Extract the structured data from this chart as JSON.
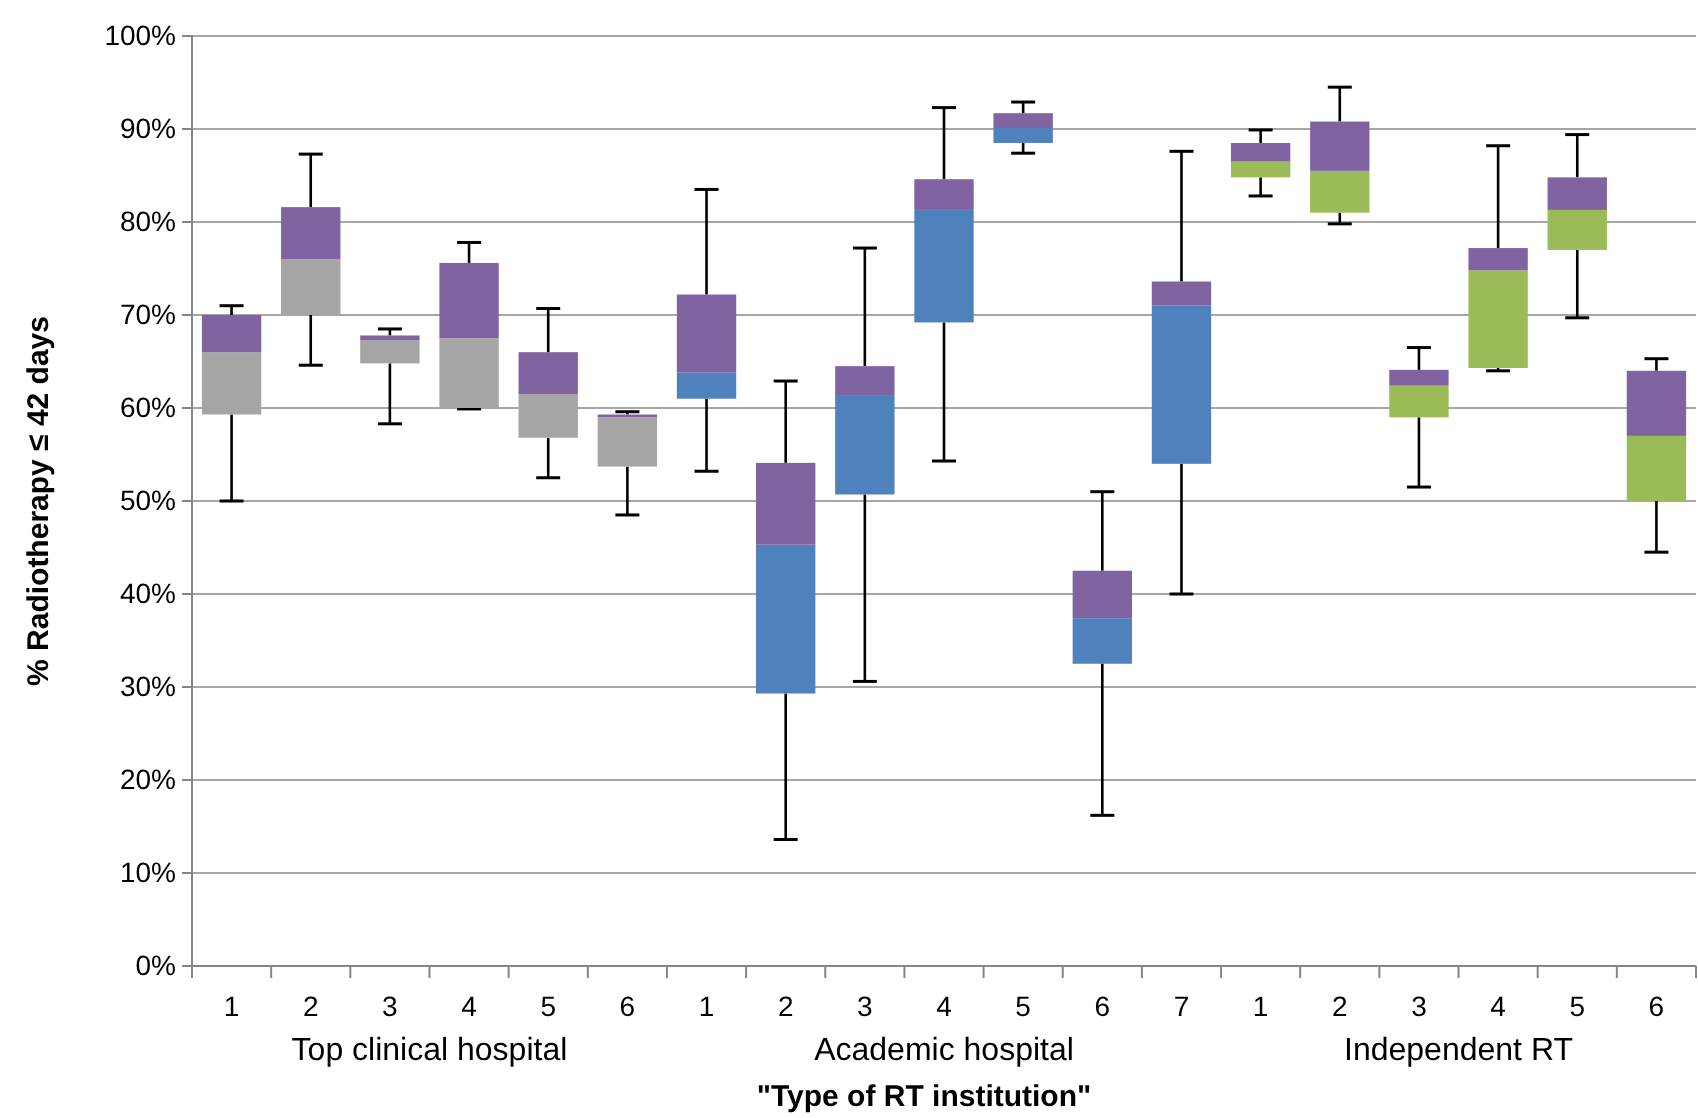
{
  "chart_data": {
    "type": "box",
    "xlabel": "\"Type of RT institution\"",
    "ylabel": "% Radiotherapy ≤ 42 days",
    "categories": [
      "1",
      "2",
      "3",
      "4",
      "5",
      "6",
      "1",
      "2",
      "3",
      "4",
      "5",
      "6",
      "7",
      "1",
      "2",
      "3",
      "4",
      "5",
      "6"
    ],
    "ylim": [
      0,
      100
    ],
    "yticks": [
      {
        "value": 0,
        "label": "0%"
      },
      {
        "value": 10,
        "label": "10%"
      },
      {
        "value": 20,
        "label": "20%"
      },
      {
        "value": 30,
        "label": "30%"
      },
      {
        "value": 40,
        "label": "40%"
      },
      {
        "value": 50,
        "label": "50%"
      },
      {
        "value": 60,
        "label": "60%"
      },
      {
        "value": 70,
        "label": "70%"
      },
      {
        "value": 80,
        "label": "80%"
      },
      {
        "value": 90,
        "label": "90%"
      },
      {
        "value": 100,
        "label": "100%"
      }
    ],
    "grid": "y",
    "color": "#8064a2",
    "annotations": [
      "Top clinical hospital",
      "Academic hospital",
      "Independent RT"
    ],
    "series": [
      {
        "color": "#a5a5a5",
        "boxes": [
          {
            "low": 50,
            "q1": 59.3,
            "median": 66,
            "q3": 70,
            "high": 71
          },
          {
            "low": 64.6,
            "q1": 70,
            "median": 76,
            "q3": 81.6,
            "high": 87.3
          },
          {
            "low": 58.3,
            "q1": 64.8,
            "median": 67.3,
            "q3": 67.8,
            "high": 68.5
          },
          {
            "low": 59.9,
            "q1": 60,
            "median": 67.5,
            "q3": 75.6,
            "high": 77.8
          },
          {
            "low": 52.5,
            "q1": 56.8,
            "median": 61.5,
            "q3": 66,
            "high": 70.7
          },
          {
            "low": 48.5,
            "q1": 53.7,
            "median": 59,
            "q3": 59.3,
            "high": 59.6
          },
          null,
          null,
          null,
          null,
          null,
          null,
          null,
          null,
          null,
          null,
          null,
          null,
          null
        ]
      },
      {
        "color": "#4f81bd",
        "boxes": [
          null,
          null,
          null,
          null,
          null,
          null,
          {
            "low": 53.2,
            "q1": 61,
            "median": 63.8,
            "q3": 72.2,
            "high": 83.5
          },
          {
            "low": 13.6,
            "q1": 29.3,
            "median": 45.3,
            "q3": 54.1,
            "high": 62.9
          },
          {
            "low": 30.6,
            "q1": 50.7,
            "median": 61.3,
            "q3": 64.5,
            "high": 77.2
          },
          {
            "low": 54.3,
            "q1": 69.2,
            "median": 81.3,
            "q3": 84.6,
            "high": 92.3
          },
          {
            "low": 87.4,
            "q1": 88.5,
            "median": 90.1,
            "q3": 91.7,
            "high": 92.9
          },
          {
            "low": 16.2,
            "q1": 32.5,
            "median": 37.4,
            "q3": 42.5,
            "high": 51
          },
          {
            "low": 40,
            "q1": 54,
            "median": 71,
            "q3": 73.6,
            "high": 87.6
          },
          null,
          null,
          null,
          null,
          null,
          null
        ]
      },
      {
        "color": "#9bbb59",
        "boxes": [
          null,
          null,
          null,
          null,
          null,
          null,
          null,
          null,
          null,
          null,
          null,
          null,
          null,
          {
            "low": 82.8,
            "q1": 84.8,
            "median": 86.5,
            "q3": 88.5,
            "high": 89.9
          },
          {
            "low": 79.8,
            "q1": 81,
            "median": 85.5,
            "q3": 90.8,
            "high": 94.5
          },
          {
            "low": 51.5,
            "q1": 59,
            "median": 62.4,
            "q3": 64.1,
            "high": 66.5
          },
          {
            "low": 64,
            "q1": 64.3,
            "median": 74.8,
            "q3": 77.2,
            "high": 88.2
          },
          {
            "low": 69.7,
            "q1": 77,
            "median": 81.3,
            "q3": 84.8,
            "high": 89.4
          },
          {
            "low": 44.5,
            "q1": 50,
            "median": 57,
            "q3": 64,
            "high": 65.3
          }
        ]
      }
    ]
  }
}
